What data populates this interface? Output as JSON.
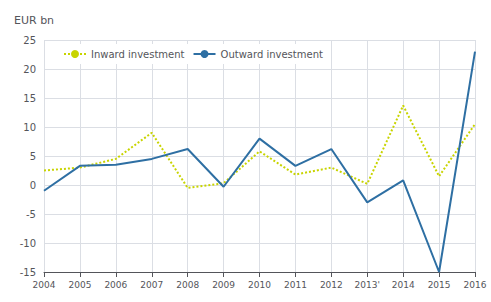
{
  "chart_data": {
    "type": "line",
    "ylabel": "EUR bn",
    "categories": [
      "2004",
      "2005",
      "2006",
      "2007",
      "2008",
      "2009",
      "2010",
      "2011",
      "2012",
      "2013'",
      "2014",
      "2015",
      "2016"
    ],
    "series": [
      {
        "name": "Inward investment",
        "color": "#c8d400",
        "line_style": "dotted",
        "values": [
          2.5,
          3.0,
          4.5,
          9.0,
          -0.5,
          0.3,
          5.8,
          1.8,
          3.0,
          0.2,
          13.7,
          1.5,
          10.5
        ]
      },
      {
        "name": "Outward investment",
        "color": "#2e6fa3",
        "line_style": "solid",
        "values": [
          -1.0,
          3.3,
          3.5,
          4.5,
          6.2,
          -0.3,
          8.0,
          3.3,
          6.2,
          -3.0,
          0.8,
          -15.0,
          23.0
        ]
      }
    ],
    "ylim": [
      -15,
      25
    ],
    "yticks": [
      -15,
      -10,
      -5,
      0,
      5,
      10,
      15,
      20,
      25
    ],
    "grid": true,
    "legend": "upper left"
  }
}
